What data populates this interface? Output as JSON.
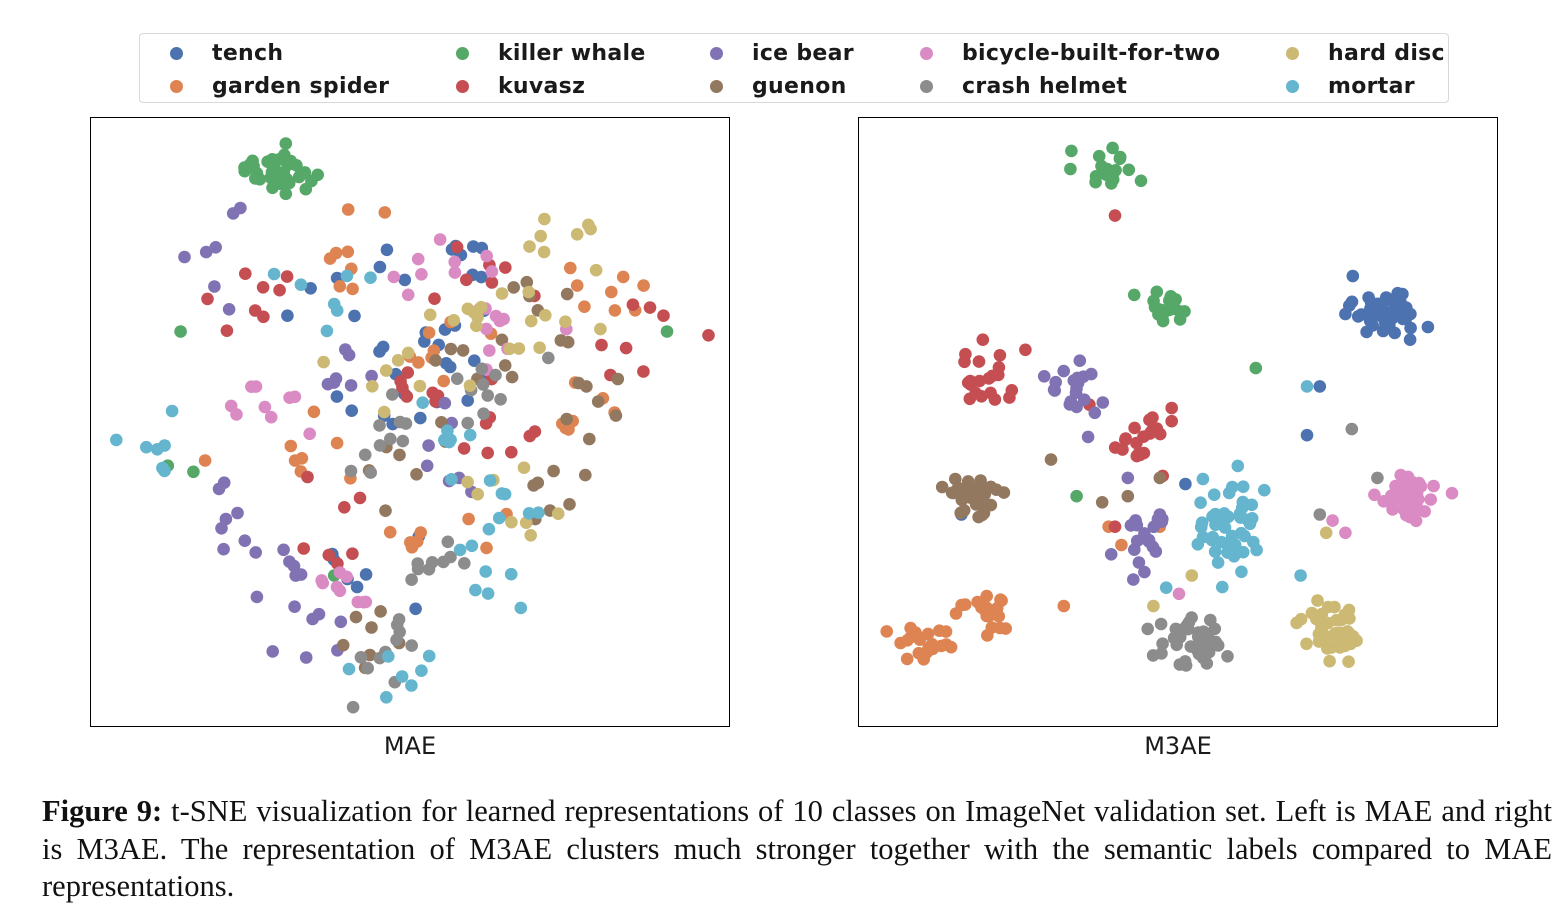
{
  "legend": [
    {
      "name": "tench",
      "color": "#4c72b0"
    },
    {
      "name": "garden spider",
      "color": "#dd8452"
    },
    {
      "name": "killer whale",
      "color": "#55a868"
    },
    {
      "name": "kuvasz",
      "color": "#c44e52"
    },
    {
      "name": "ice bear",
      "color": "#8172b3"
    },
    {
      "name": "guenon",
      "color": "#937860"
    },
    {
      "name": "bicycle-built-for-two",
      "color": "#da8bc3"
    },
    {
      "name": "crash helmet",
      "color": "#8c8c8c"
    },
    {
      "name": "hard disc",
      "color": "#ccb974"
    },
    {
      "name": "mortar",
      "color": "#64b5cd"
    }
  ],
  "caption": {
    "label": "Figure 9:",
    "text": " t-SNE visualization for learned representations of 10 classes on ImageNet validation set. Left is MAE and right is M3AE. The representation of M3AE clusters much stronger together with the semantic labels compared to MAE representations."
  },
  "chart_data": [
    {
      "type": "scatter",
      "title": "",
      "xlabel": "MAE",
      "ylabel": "",
      "grid": false,
      "legend_position": "top",
      "series": [
        {
          "name": "tench",
          "centers": [
            [
              0.48,
              0.47
            ],
            [
              0.5,
              0.4
            ],
            [
              0.42,
              0.3
            ],
            [
              0.55,
              0.37
            ],
            [
              0.43,
              0.75
            ],
            [
              0.6,
              0.24
            ]
          ],
          "spread": [
            0.1,
            0.09
          ],
          "count": 40
        },
        {
          "name": "garden spider",
          "centers": [
            [
              0.4,
              0.24
            ],
            [
              0.82,
              0.27
            ],
            [
              0.75,
              0.5
            ],
            [
              0.32,
              0.55
            ],
            [
              0.55,
              0.7
            ],
            [
              0.52,
              0.38
            ]
          ],
          "spread": [
            0.09,
            0.07
          ],
          "count": 44
        },
        {
          "name": "killer whale",
          "centers": [
            [
              0.29,
              0.09
            ]
          ],
          "extra": [
            [
              0.12,
              0.57
            ],
            [
              0.16,
              0.58
            ],
            [
              0.9,
              0.35
            ],
            [
              0.14,
              0.35
            ],
            [
              0.38,
              0.75
            ]
          ],
          "spread": [
            0.07,
            0.035
          ],
          "count": 40
        },
        {
          "name": "kuvasz",
          "centers": [
            [
              0.5,
              0.43
            ],
            [
              0.62,
              0.28
            ],
            [
              0.38,
              0.65
            ],
            [
              0.25,
              0.3
            ],
            [
              0.62,
              0.52
            ],
            [
              0.88,
              0.37
            ]
          ],
          "spread": [
            0.09,
            0.08
          ],
          "count": 44
        },
        {
          "name": "ice bear",
          "centers": [
            [
              0.22,
              0.23
            ],
            [
              0.3,
              0.72
            ],
            [
              0.42,
              0.42
            ],
            [
              0.35,
              0.82
            ],
            [
              0.22,
              0.65
            ],
            [
              0.55,
              0.55
            ]
          ],
          "spread": [
            0.08,
            0.08
          ],
          "count": 42
        },
        {
          "name": "guenon",
          "centers": [
            [
              0.7,
              0.32
            ],
            [
              0.78,
              0.46
            ],
            [
              0.6,
              0.4
            ],
            [
              0.48,
              0.55
            ],
            [
              0.72,
              0.6
            ],
            [
              0.45,
              0.86
            ]
          ],
          "spread": [
            0.08,
            0.07
          ],
          "count": 42
        },
        {
          "name": "bicycle-built-for-two",
          "centers": [
            [
              0.28,
              0.45
            ],
            [
              0.4,
              0.78
            ],
            [
              0.55,
              0.25
            ],
            [
              0.66,
              0.36
            ]
          ],
          "spread": [
            0.08,
            0.07
          ],
          "count": 36
        },
        {
          "name": "crash helmet",
          "centers": [
            [
              0.47,
              0.88
            ],
            [
              0.52,
              0.76
            ],
            [
              0.46,
              0.53
            ],
            [
              0.62,
              0.45
            ]
          ],
          "spread": [
            0.07,
            0.07
          ],
          "count": 40
        },
        {
          "name": "hard disc",
          "centers": [
            [
              0.48,
              0.44
            ],
            [
              0.67,
              0.62
            ],
            [
              0.72,
              0.34
            ],
            [
              0.58,
              0.33
            ],
            [
              0.72,
              0.2
            ]
          ],
          "spread": [
            0.09,
            0.07
          ],
          "count": 40
        },
        {
          "name": "mortar",
          "centers": [
            [
              0.35,
              0.27
            ],
            [
              0.55,
              0.5
            ],
            [
              0.67,
              0.6
            ],
            [
              0.47,
              0.9
            ],
            [
              0.1,
              0.55
            ],
            [
              0.62,
              0.74
            ]
          ],
          "spread": [
            0.09,
            0.08
          ],
          "count": 38
        }
      ]
    },
    {
      "type": "scatter",
      "title": "",
      "xlabel": "M3AE",
      "ylabel": "",
      "grid": false,
      "legend_position": "top",
      "series": [
        {
          "name": "tench",
          "centers": [
            [
              0.82,
              0.32
            ]
          ],
          "extra": [
            [
              0.72,
              0.44
            ],
            [
              0.7,
              0.52
            ],
            [
              0.16,
              0.65
            ],
            [
              0.51,
              0.6
            ]
          ],
          "spread": [
            0.06,
            0.045
          ],
          "count": 42
        },
        {
          "name": "garden spider",
          "centers": [
            [
              0.1,
              0.86
            ],
            [
              0.2,
              0.81
            ]
          ],
          "extra": [
            [
              0.32,
              0.8
            ],
            [
              0.39,
              0.67
            ],
            [
              0.41,
              0.7
            ],
            [
              0.47,
              0.67
            ]
          ],
          "spread": [
            0.05,
            0.04
          ],
          "count": 44
        },
        {
          "name": "killer whale",
          "centers": [
            [
              0.39,
              0.09
            ],
            [
              0.48,
              0.31
            ]
          ],
          "extra": [
            [
              0.43,
              0.29
            ],
            [
              0.62,
              0.41
            ],
            [
              0.34,
              0.62
            ]
          ],
          "spread": [
            0.04,
            0.035
          ],
          "count": 40
        },
        {
          "name": "kuvasz",
          "centers": [
            [
              0.2,
              0.42
            ],
            [
              0.45,
              0.52
            ]
          ],
          "extra": [
            [
              0.4,
              0.16
            ],
            [
              0.26,
              0.38
            ],
            [
              0.36,
              0.47
            ],
            [
              0.4,
              0.67
            ]
          ],
          "spread": [
            0.05,
            0.06
          ],
          "count": 40
        },
        {
          "name": "ice bear",
          "centers": [
            [
              0.33,
              0.45
            ],
            [
              0.44,
              0.7
            ]
          ],
          "extra": [
            [
              0.42,
              0.59
            ],
            [
              0.47,
              0.65
            ]
          ],
          "spread": [
            0.05,
            0.06
          ],
          "count": 40
        },
        {
          "name": "guenon",
          "centers": [
            [
              0.18,
              0.62
            ]
          ],
          "extra": [
            [
              0.3,
              0.56
            ],
            [
              0.38,
              0.63
            ],
            [
              0.42,
              0.62
            ],
            [
              0.47,
              0.59
            ]
          ],
          "spread": [
            0.05,
            0.04
          ],
          "count": 42
        },
        {
          "name": "bicycle-built-for-two",
          "centers": [
            [
              0.86,
              0.62
            ]
          ],
          "extra": [
            [
              0.74,
              0.66
            ],
            [
              0.76,
              0.68
            ],
            [
              0.5,
              0.78
            ]
          ],
          "spread": [
            0.055,
            0.045
          ],
          "count": 42
        },
        {
          "name": "crash helmet",
          "centers": [
            [
              0.52,
              0.86
            ]
          ],
          "extra": [
            [
              0.77,
              0.51
            ],
            [
              0.81,
              0.59
            ],
            [
              0.72,
              0.65
            ]
          ],
          "spread": [
            0.05,
            0.05
          ],
          "count": 44
        },
        {
          "name": "hard disc",
          "centers": [
            [
              0.74,
              0.84
            ]
          ],
          "extra": [
            [
              0.46,
              0.8
            ],
            [
              0.73,
              0.68
            ],
            [
              0.52,
              0.75
            ]
          ],
          "spread": [
            0.06,
            0.045
          ],
          "count": 44
        },
        {
          "name": "mortar",
          "centers": [
            [
              0.58,
              0.67
            ]
          ],
          "extra": [
            [
              0.7,
              0.44
            ],
            [
              0.69,
              0.75
            ],
            [
              0.48,
              0.77
            ]
          ],
          "spread": [
            0.06,
            0.07
          ],
          "count": 46
        }
      ]
    }
  ]
}
